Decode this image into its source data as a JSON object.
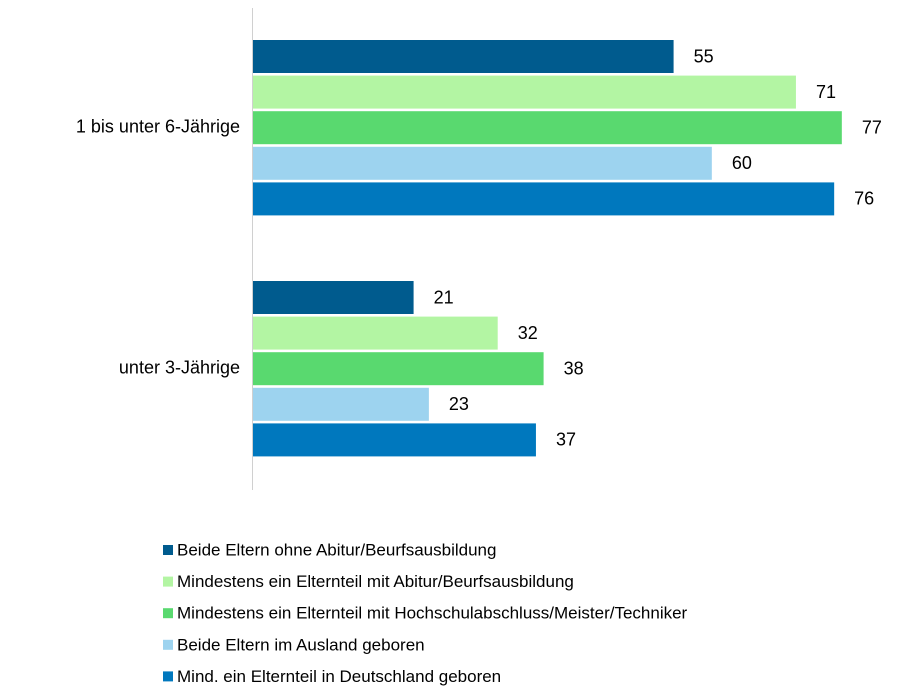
{
  "chart_data": {
    "type": "hbar",
    "categories": [
      "1 bis unter 6-Jährige",
      "unter 3-Jährige"
    ],
    "series": [
      {
        "name": "Beide Eltern ohne Abitur/Beurfsausbildung",
        "color": "#005b8e",
        "values": [
          55,
          21
        ]
      },
      {
        "name": "Mindestens ein Elternteil mit Abitur/Beurfsausbildung",
        "color": "#b3f5a3",
        "values": [
          71,
          32
        ]
      },
      {
        "name": "Mindestens ein Elternteil mit Hochschulabschluss/Meister/Techniker",
        "color": "#59d96f",
        "values": [
          77,
          38
        ]
      },
      {
        "name": "Beide Eltern im Ausland geboren",
        "color": "#9dd3ef",
        "values": [
          60,
          23
        ]
      },
      {
        "name": "Mind. ein Elternteil in Deutschland geboren",
        "color": "#0078be",
        "values": [
          76,
          37
        ]
      }
    ],
    "xlim": [
      0,
      85
    ],
    "legend": "bottom"
  }
}
